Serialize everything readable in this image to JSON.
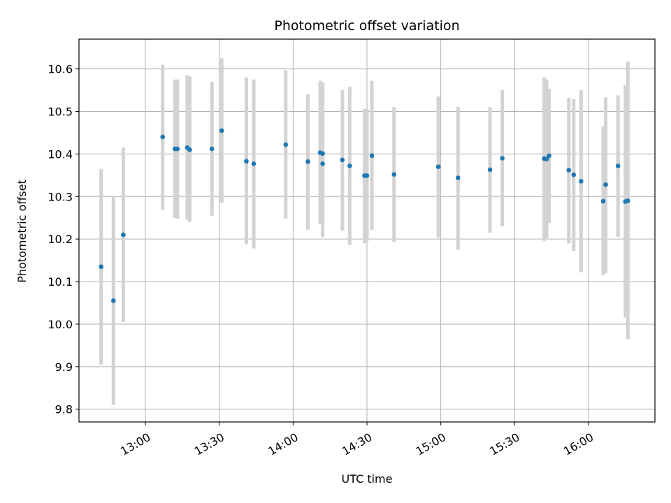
{
  "chart_data": {
    "type": "scatter",
    "title": "Photometric offset variation",
    "xlabel": "UTC time",
    "ylabel": "Photometric offset",
    "x_tick_labels": [
      "13:00",
      "13:30",
      "14:00",
      "14:30",
      "15:00",
      "15:30",
      "16:00"
    ],
    "y_tick_labels": [
      "9.8",
      "9.9",
      "10.0",
      "10.1",
      "10.2",
      "10.3",
      "10.4",
      "10.5",
      "10.6"
    ],
    "xlim": [
      "12:33",
      "16:27"
    ],
    "ylim": [
      9.77,
      10.67
    ],
    "grid": true,
    "point_color": "#1f77b4",
    "errorbar_color": "#d3d3d3",
    "points": [
      {
        "t": "12:42",
        "y": 10.135,
        "lo": 9.905,
        "hi": 10.365
      },
      {
        "t": "12:47",
        "y": 10.055,
        "lo": 9.81,
        "hi": 10.3
      },
      {
        "t": "12:51",
        "y": 10.21,
        "lo": 10.005,
        "hi": 10.415
      },
      {
        "t": "13:07",
        "y": 10.44,
        "lo": 10.268,
        "hi": 10.61
      },
      {
        "t": "13:12",
        "y": 10.412,
        "lo": 10.25,
        "hi": 10.575
      },
      {
        "t": "13:13",
        "y": 10.412,
        "lo": 10.248,
        "hi": 10.575
      },
      {
        "t": "13:17",
        "y": 10.415,
        "lo": 10.245,
        "hi": 10.585
      },
      {
        "t": "13:18",
        "y": 10.41,
        "lo": 10.24,
        "hi": 10.582
      },
      {
        "t": "13:27",
        "y": 10.412,
        "lo": 10.255,
        "hi": 10.57
      },
      {
        "t": "13:31",
        "y": 10.455,
        "lo": 10.285,
        "hi": 10.625
      },
      {
        "t": "13:41",
        "y": 10.383,
        "lo": 10.188,
        "hi": 10.58
      },
      {
        "t": "13:44",
        "y": 10.377,
        "lo": 10.178,
        "hi": 10.575
      },
      {
        "t": "13:57",
        "y": 10.422,
        "lo": 10.248,
        "hi": 10.597
      },
      {
        "t": "14:06",
        "y": 10.382,
        "lo": 10.222,
        "hi": 10.54
      },
      {
        "t": "14:11",
        "y": 10.403,
        "lo": 10.235,
        "hi": 10.572
      },
      {
        "t": "14:12",
        "y": 10.377,
        "lo": 10.205,
        "hi": 10.568
      },
      {
        "t": "14:12",
        "y": 10.401,
        "lo": 10.235,
        "hi": 10.566
      },
      {
        "t": "14:20",
        "y": 10.386,
        "lo": 10.22,
        "hi": 10.55
      },
      {
        "t": "14:23",
        "y": 10.372,
        "lo": 10.186,
        "hi": 10.558
      },
      {
        "t": "14:29",
        "y": 10.349,
        "lo": 10.19,
        "hi": 10.506
      },
      {
        "t": "14:30",
        "y": 10.349,
        "lo": 10.195,
        "hi": 10.505
      },
      {
        "t": "14:32",
        "y": 10.396,
        "lo": 10.222,
        "hi": 10.572
      },
      {
        "t": "14:41",
        "y": 10.352,
        "lo": 10.193,
        "hi": 10.51
      },
      {
        "t": "14:59",
        "y": 10.37,
        "lo": 10.203,
        "hi": 10.535
      },
      {
        "t": "15:07",
        "y": 10.344,
        "lo": 10.175,
        "hi": 10.511
      },
      {
        "t": "15:20",
        "y": 10.363,
        "lo": 10.215,
        "hi": 10.51
      },
      {
        "t": "15:25",
        "y": 10.39,
        "lo": 10.23,
        "hi": 10.55
      },
      {
        "t": "15:42",
        "y": 10.389,
        "lo": 10.196,
        "hi": 10.58
      },
      {
        "t": "15:43",
        "y": 10.388,
        "lo": 10.2,
        "hi": 10.575
      },
      {
        "t": "15:44",
        "y": 10.396,
        "lo": 10.238,
        "hi": 10.553
      },
      {
        "t": "15:52",
        "y": 10.362,
        "lo": 10.19,
        "hi": 10.532
      },
      {
        "t": "15:54",
        "y": 10.351,
        "lo": 10.172,
        "hi": 10.529
      },
      {
        "t": "15:57",
        "y": 10.336,
        "lo": 10.122,
        "hi": 10.55
      },
      {
        "t": "16:06",
        "y": 10.289,
        "lo": 10.115,
        "hi": 10.465
      },
      {
        "t": "16:07",
        "y": 10.328,
        "lo": 10.12,
        "hi": 10.533
      },
      {
        "t": "16:12",
        "y": 10.372,
        "lo": 10.205,
        "hi": 10.538
      },
      {
        "t": "16:15",
        "y": 10.288,
        "lo": 10.015,
        "hi": 10.562
      },
      {
        "t": "16:16",
        "y": 10.29,
        "lo": 9.965,
        "hi": 10.617
      }
    ]
  }
}
